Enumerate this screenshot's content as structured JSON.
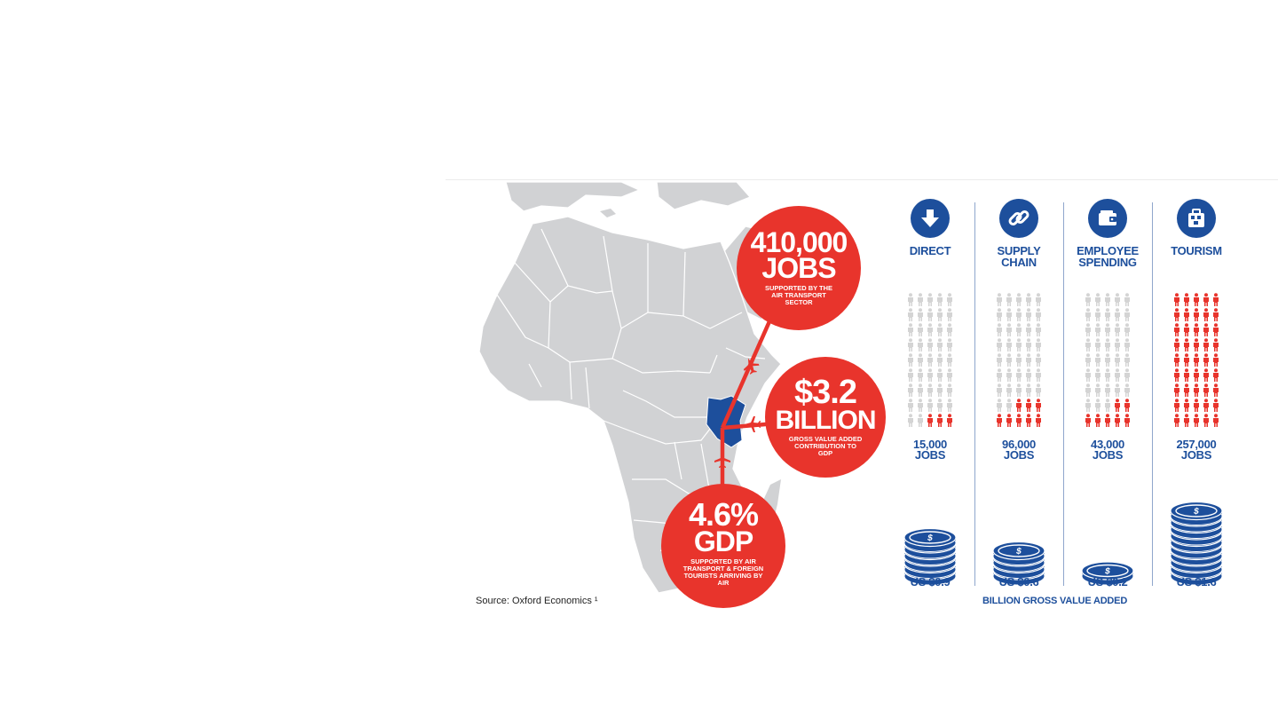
{
  "stats": {
    "jobs": {
      "big": "410,000",
      "big2": "JOBS",
      "caption": "SUPPORTED BY THE AIR TRANSPORT SECTOR"
    },
    "gva": {
      "big": "$3.2",
      "big2": "BILLION",
      "caption": "GROSS VALUE ADDED CONTRIBUTION TO GDP"
    },
    "gdp": {
      "big": "4.6%",
      "big2": "GDP",
      "caption": "SUPPORTED BY AIR TRANSPORT & FOREIGN TOURISTS ARRIVING BY AIR"
    }
  },
  "source": "Source: Oxford Economics ¹",
  "columns": [
    {
      "key": "direct",
      "line1": "DIRECT",
      "line2": "",
      "icon": "arrow-down-icon",
      "jobs": "15,000",
      "jobs_unit": "JOBS",
      "gva": "US $0.9",
      "people_total": 45,
      "people_highlighted": 3,
      "coin_count": 6
    },
    {
      "key": "supply-chain",
      "line1": "SUPPLY",
      "line2": "CHAIN",
      "icon": "chain-link-icon",
      "jobs": "96,000",
      "jobs_unit": "JOBS",
      "gva": "US $0.6",
      "people_total": 45,
      "people_highlighted": 8,
      "coin_count": 4
    },
    {
      "key": "employee-spending",
      "line1": "EMPLOYEE",
      "line2": "SPENDING",
      "icon": "wallet-icon",
      "jobs": "43,000",
      "jobs_unit": "JOBS",
      "gva": "US $0.2",
      "people_total": 45,
      "people_highlighted": 7,
      "coin_count": 1
    },
    {
      "key": "tourism",
      "line1": "TOURISM",
      "line2": "",
      "icon": "suitcase-icon",
      "jobs": "257,000",
      "jobs_unit": "JOBS",
      "gva": "US $1.6",
      "people_total": 45,
      "people_highlighted": 45,
      "coin_count": 10
    }
  ],
  "gva_caption": "BILLION GROSS VALUE ADDED",
  "colors": {
    "red": "#e8342c",
    "blue": "#1d4f9c",
    "grey_person": "#d4d4d4",
    "land": "#d1d2d4",
    "border": "#ffffff"
  },
  "map": {
    "highlight": "Kenya",
    "icon": "airplane-icon"
  }
}
